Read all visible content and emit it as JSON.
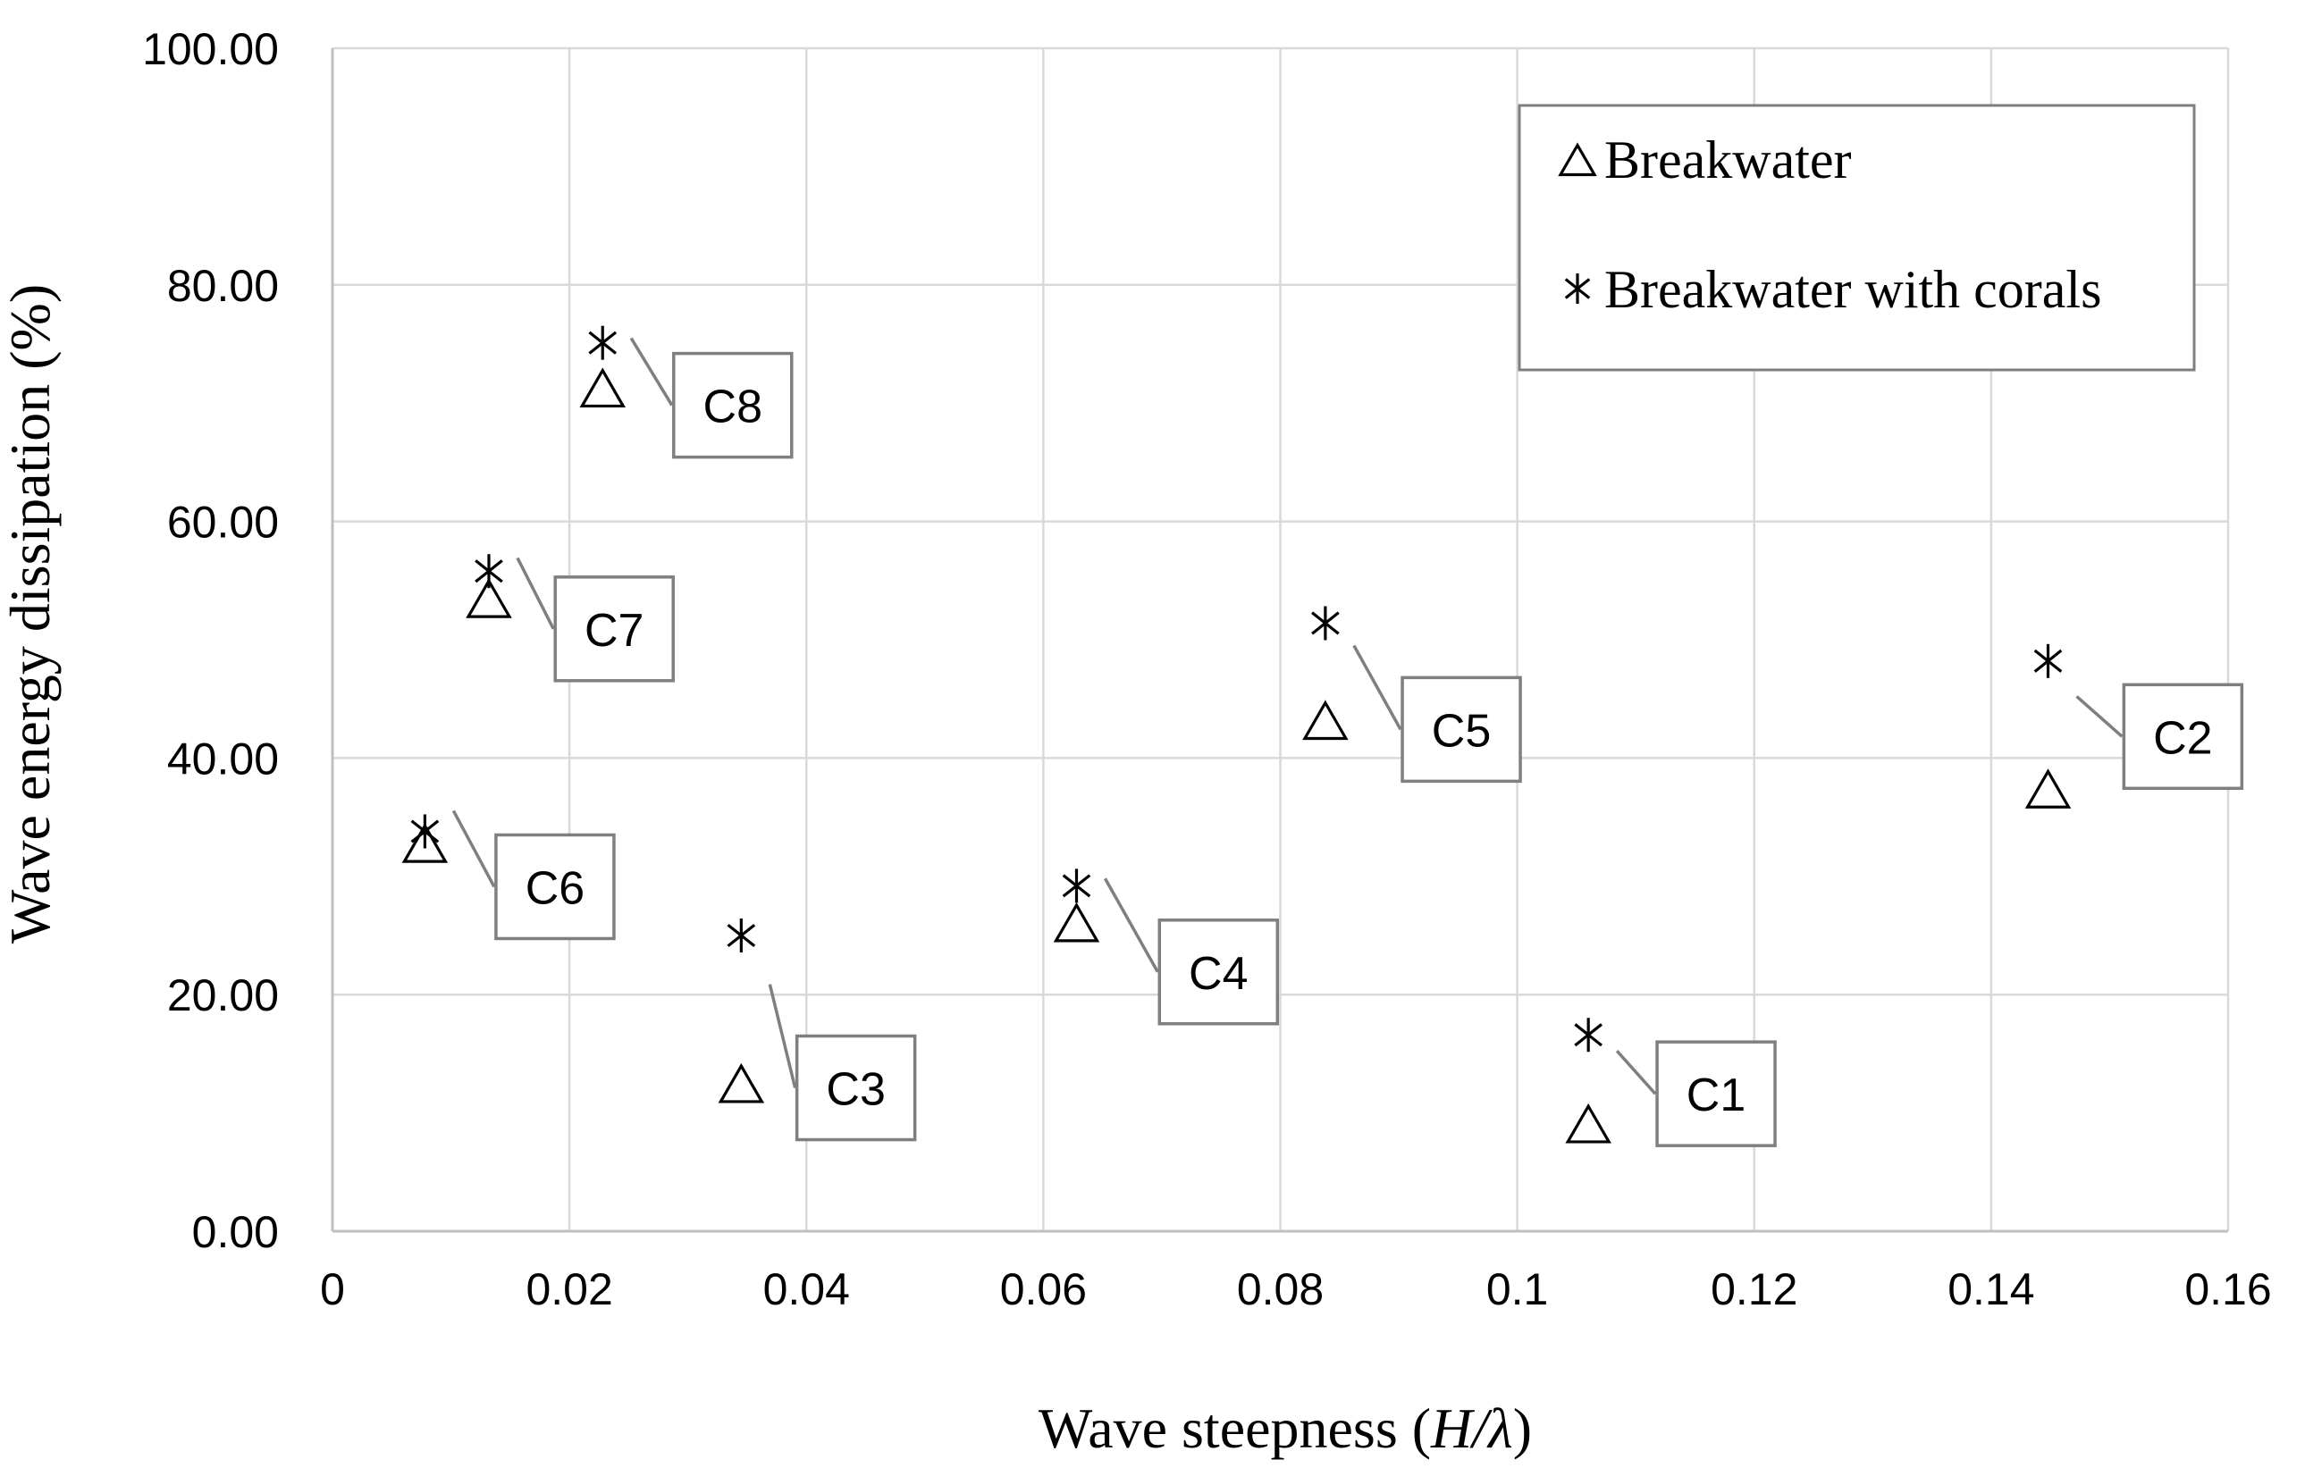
{
  "chart_data": {
    "type": "scatter",
    "xlabel_prefix": "Wave steepness (",
    "xlabel_var": "H/λ",
    "xlabel_suffix": ")",
    "ylabel": "Wave energy dissipation (%)",
    "xlim": [
      0,
      0.16
    ],
    "ylim": [
      0,
      100
    ],
    "x_ticks": [
      0,
      0.02,
      0.04,
      0.06,
      0.08,
      0.1,
      0.12,
      0.14,
      0.16
    ],
    "x_tick_labels": [
      "0",
      "0.02",
      "0.04",
      "0.06",
      "0.08",
      "0.1",
      "0.12",
      "0.14",
      "0.16"
    ],
    "y_ticks": [
      0,
      20,
      40,
      60,
      80,
      100
    ],
    "y_tick_labels": [
      "0.00",
      "20.00",
      "40.00",
      "60.00",
      "80.00",
      "100.00"
    ],
    "grid": true,
    "legend_position": "top-right",
    "series": [
      {
        "name": "Breakwater",
        "marker": "triangle",
        "points": [
          {
            "case": "C1",
            "x": 0.106,
            "y": 8.7
          },
          {
            "case": "C2",
            "x": 0.1448,
            "y": 37.0
          },
          {
            "case": "C3",
            "x": 0.0345,
            "y": 12.1
          },
          {
            "case": "C4",
            "x": 0.0628,
            "y": 25.7
          },
          {
            "case": "C5",
            "x": 0.0838,
            "y": 42.8
          },
          {
            "case": "C6",
            "x": 0.0078,
            "y": 32.4
          },
          {
            "case": "C7",
            "x": 0.0132,
            "y": 53.1
          },
          {
            "case": "C8",
            "x": 0.0228,
            "y": 70.9
          }
        ]
      },
      {
        "name": "Breakwater with corals",
        "marker": "asterisk",
        "points": [
          {
            "case": "C1",
            "x": 0.106,
            "y": 16.6
          },
          {
            "case": "C2",
            "x": 0.1448,
            "y": 48.2
          },
          {
            "case": "C3",
            "x": 0.0345,
            "y": 25.0
          },
          {
            "case": "C4",
            "x": 0.0628,
            "y": 29.2
          },
          {
            "case": "C5",
            "x": 0.0838,
            "y": 51.4
          },
          {
            "case": "C6",
            "x": 0.0078,
            "y": 33.8
          },
          {
            "case": "C7",
            "x": 0.0132,
            "y": 55.8
          },
          {
            "case": "C8",
            "x": 0.0228,
            "y": 75.1
          }
        ]
      }
    ],
    "callouts": [
      {
        "label": "C1",
        "box_x": 0.1118,
        "box_y": 16.0
      },
      {
        "label": "C2",
        "box_x": 0.1512,
        "box_y": 46.2
      },
      {
        "label": "C3",
        "box_x": 0.0392,
        "box_y": 16.5
      },
      {
        "label": "C4",
        "box_x": 0.0698,
        "box_y": 26.3
      },
      {
        "label": "C5",
        "box_x": 0.0903,
        "box_y": 46.8
      },
      {
        "label": "C6",
        "box_x": 0.0138,
        "box_y": 33.5
      },
      {
        "label": "C7",
        "box_x": 0.0188,
        "box_y": 55.3
      },
      {
        "label": "C8",
        "box_x": 0.0288,
        "box_y": 74.2
      }
    ]
  }
}
